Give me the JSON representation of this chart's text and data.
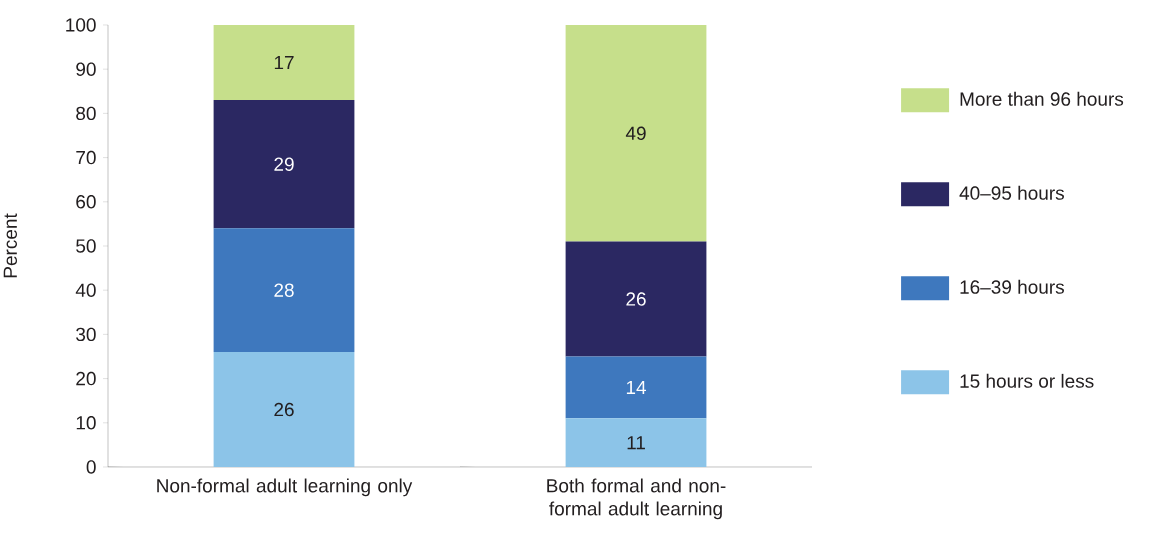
{
  "chart_data": {
    "type": "bar",
    "stacked": true,
    "ylabel": "Percent",
    "categories": [
      "Non-formal adult learning only",
      "Both formal and non-formal adult learning"
    ],
    "series": [
      {
        "name": "15 hours or less",
        "color": "#8cc4e8",
        "values": [
          26,
          11
        ]
      },
      {
        "name": "16–39 hours",
        "color": "#3e78be",
        "values": [
          28,
          14
        ]
      },
      {
        "name": "40–95 hours",
        "color": "#2b2862",
        "values": [
          29,
          26
        ]
      },
      {
        "name": "More than 96 hours",
        "color": "#c6df8b",
        "values": [
          17,
          49
        ]
      }
    ],
    "ylim": [
      0,
      100
    ],
    "yticks": [
      0,
      10,
      20,
      30,
      40,
      50,
      60,
      70,
      80,
      90,
      100
    ],
    "data_labels": true,
    "legend": "right",
    "grid": false
  }
}
